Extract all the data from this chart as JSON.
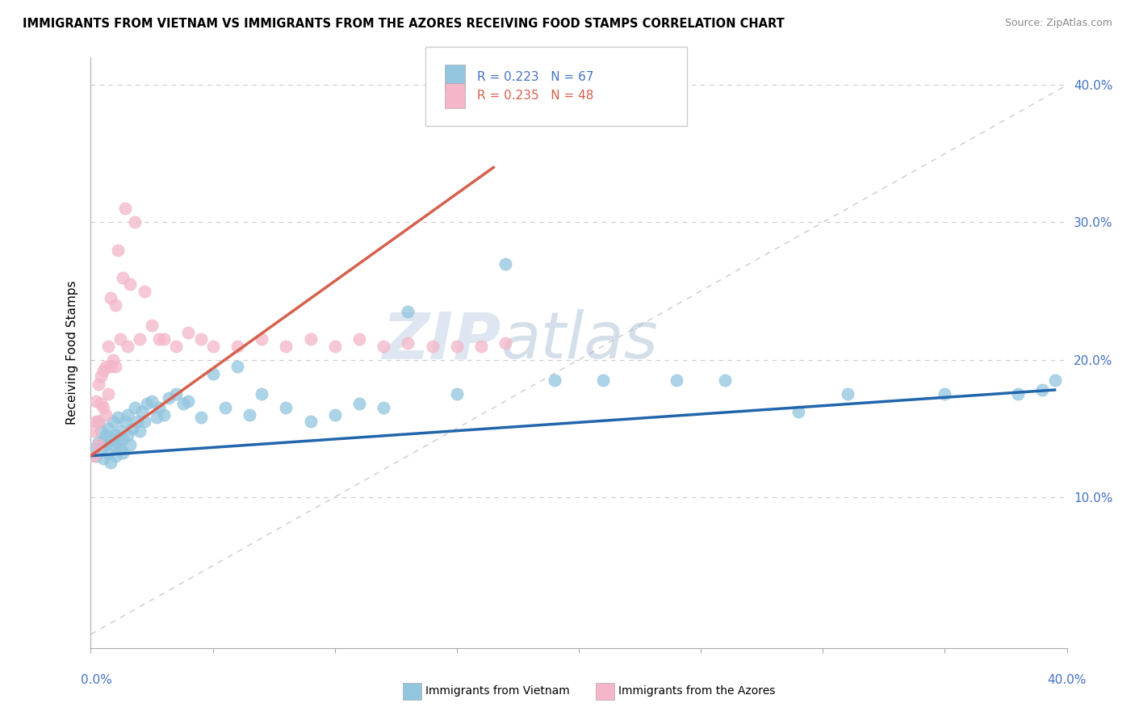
{
  "title": "IMMIGRANTS FROM VIETNAM VS IMMIGRANTS FROM THE AZORES RECEIVING FOOD STAMPS CORRELATION CHART",
  "source": "Source: ZipAtlas.com",
  "ylabel": "Receiving Food Stamps",
  "xlim": [
    0.0,
    0.4
  ],
  "ylim": [
    -0.01,
    0.42
  ],
  "legend_r1": "R = 0.223",
  "legend_n1": "N = 67",
  "legend_r2": "R = 0.235",
  "legend_n2": "N = 48",
  "vietnam_color": "#92c5de",
  "azores_color": "#f4b6c8",
  "vietnam_line_color": "#2166ac",
  "azores_line_color": "#d6604d",
  "diagonal_color": "#cccccc",
  "watermark_zip": "ZIP",
  "watermark_atlas": "atlas",
  "scatter_vietnam_x": [
    0.001,
    0.002,
    0.003,
    0.003,
    0.004,
    0.004,
    0.005,
    0.005,
    0.006,
    0.006,
    0.007,
    0.007,
    0.008,
    0.008,
    0.009,
    0.009,
    0.01,
    0.01,
    0.011,
    0.011,
    0.012,
    0.012,
    0.013,
    0.013,
    0.014,
    0.015,
    0.015,
    0.016,
    0.017,
    0.018,
    0.019,
    0.02,
    0.021,
    0.022,
    0.023,
    0.025,
    0.027,
    0.028,
    0.03,
    0.032,
    0.035,
    0.038,
    0.04,
    0.045,
    0.05,
    0.055,
    0.06,
    0.065,
    0.07,
    0.08,
    0.09,
    0.1,
    0.11,
    0.12,
    0.13,
    0.15,
    0.17,
    0.19,
    0.21,
    0.24,
    0.26,
    0.29,
    0.31,
    0.35,
    0.38,
    0.39,
    0.395
  ],
  "scatter_vietnam_y": [
    0.135,
    0.13,
    0.14,
    0.155,
    0.135,
    0.148,
    0.14,
    0.128,
    0.138,
    0.145,
    0.132,
    0.15,
    0.142,
    0.125,
    0.138,
    0.155,
    0.145,
    0.13,
    0.14,
    0.158,
    0.135,
    0.148,
    0.142,
    0.132,
    0.155,
    0.145,
    0.16,
    0.138,
    0.15,
    0.165,
    0.155,
    0.148,
    0.162,
    0.155,
    0.168,
    0.17,
    0.158,
    0.165,
    0.16,
    0.172,
    0.175,
    0.168,
    0.17,
    0.158,
    0.19,
    0.165,
    0.195,
    0.16,
    0.175,
    0.165,
    0.155,
    0.16,
    0.168,
    0.165,
    0.235,
    0.175,
    0.27,
    0.185,
    0.185,
    0.185,
    0.185,
    0.162,
    0.175,
    0.175,
    0.175,
    0.178,
    0.185
  ],
  "scatter_azores_x": [
    0.001,
    0.001,
    0.002,
    0.002,
    0.003,
    0.003,
    0.003,
    0.004,
    0.004,
    0.005,
    0.005,
    0.006,
    0.006,
    0.007,
    0.007,
    0.008,
    0.008,
    0.009,
    0.01,
    0.01,
    0.011,
    0.012,
    0.013,
    0.014,
    0.015,
    0.016,
    0.018,
    0.02,
    0.022,
    0.025,
    0.028,
    0.03,
    0.035,
    0.04,
    0.045,
    0.05,
    0.06,
    0.07,
    0.08,
    0.09,
    0.1,
    0.11,
    0.12,
    0.13,
    0.14,
    0.15,
    0.16,
    0.17
  ],
  "scatter_azores_y": [
    0.13,
    0.148,
    0.155,
    0.17,
    0.138,
    0.155,
    0.182,
    0.168,
    0.188,
    0.165,
    0.192,
    0.16,
    0.195,
    0.175,
    0.21,
    0.195,
    0.245,
    0.2,
    0.195,
    0.24,
    0.28,
    0.215,
    0.26,
    0.31,
    0.21,
    0.255,
    0.3,
    0.215,
    0.25,
    0.225,
    0.215,
    0.215,
    0.21,
    0.22,
    0.215,
    0.21,
    0.21,
    0.215,
    0.21,
    0.215,
    0.21,
    0.215,
    0.21,
    0.212,
    0.21,
    0.21,
    0.21,
    0.212
  ],
  "azores_line_x0": 0.0,
  "azores_line_y0": 0.13,
  "azores_line_x1": 0.165,
  "azores_line_y1": 0.34,
  "vietnam_line_x0": 0.0,
  "vietnam_line_y0": 0.13,
  "vietnam_line_x1": 0.395,
  "vietnam_line_y1": 0.178
}
